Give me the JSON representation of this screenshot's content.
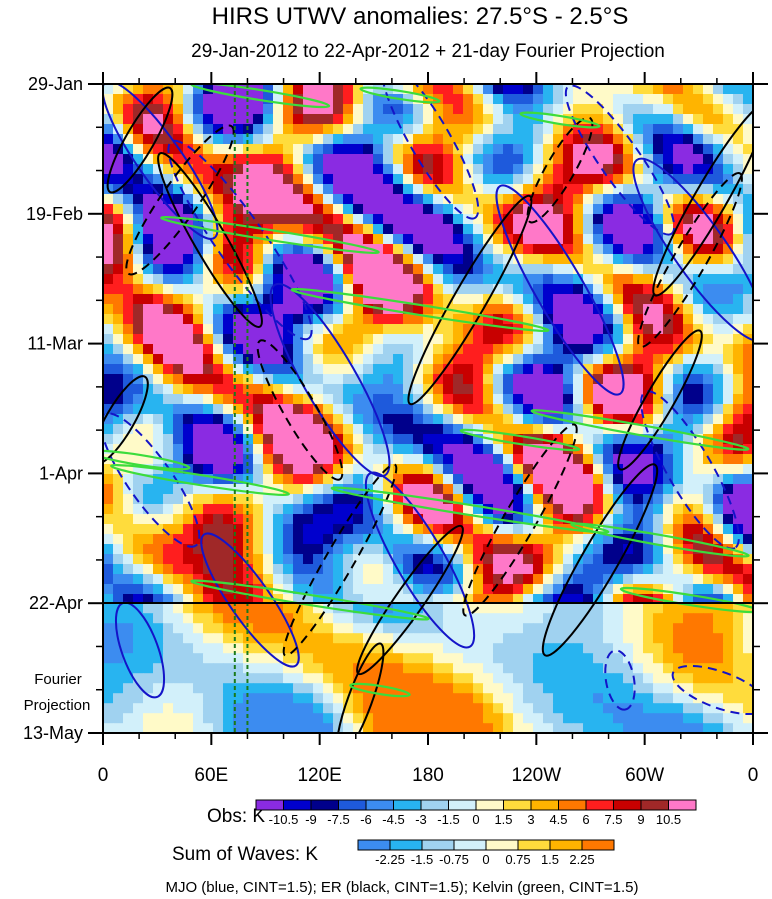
{
  "chart_data": {
    "type": "heatmap",
    "title": "HIRS UTWV anomalies: 27.5°S - 2.5°S",
    "subtitle": "29-Jan-2012 to 22-Apr-2012 + 21-day Fourier Projection",
    "x_ticks": [
      "0",
      "60E",
      "120E",
      "180",
      "120W",
      "60W",
      "0"
    ],
    "x_range": [
      0,
      360
    ],
    "y_ticks": [
      "29-Jan",
      "19-Feb",
      "11-Mar",
      "1-Apr",
      "22-Apr",
      "13-May"
    ],
    "y_range_days": [
      0,
      105
    ],
    "observation_end_day": 84,
    "projection_label": [
      "Fourier",
      "Projection"
    ],
    "reference_longitudes": [
      73,
      80
    ],
    "obs_colorbar": {
      "label": "Obs: K",
      "levels": [
        "-10.5",
        "-9",
        "-7.5",
        "-6",
        "-4.5",
        "-3",
        "-1.5",
        "0",
        "1.5",
        "3",
        "4.5",
        "6",
        "7.5",
        "9",
        "10.5"
      ],
      "colors": [
        "#8a2be2",
        "#0000cd",
        "#00008b",
        "#1e5adc",
        "#3c8cf0",
        "#28b4f0",
        "#a0d2f0",
        "#d2f0fa",
        "#fffac8",
        "#ffdc3c",
        "#ffb400",
        "#ff7800",
        "#ff1e1e",
        "#c80000",
        "#a02828",
        "#ff78c8"
      ]
    },
    "waves_colorbar": {
      "label": "Sum of Waves: K",
      "levels": [
        "-2.25",
        "-1.5",
        "-0.75",
        "0",
        "0.75",
        "1.5",
        "2.25"
      ],
      "colors": [
        "#3c8cf0",
        "#28b4f0",
        "#a0d2f0",
        "#d2f0fa",
        "#fffac8",
        "#ffdc3c",
        "#ffb400",
        "#ff7800"
      ]
    },
    "footer": "MJO (blue, CINT=1.5); ER (black, CINT=1.5); Kelvin (green, CINT=1.5)",
    "overlays": [
      {
        "name": "MJO",
        "color": "#1414c8"
      },
      {
        "name": "ER",
        "color": "#000000"
      },
      {
        "name": "Kelvin",
        "color": "#3cdc3c"
      }
    ]
  }
}
